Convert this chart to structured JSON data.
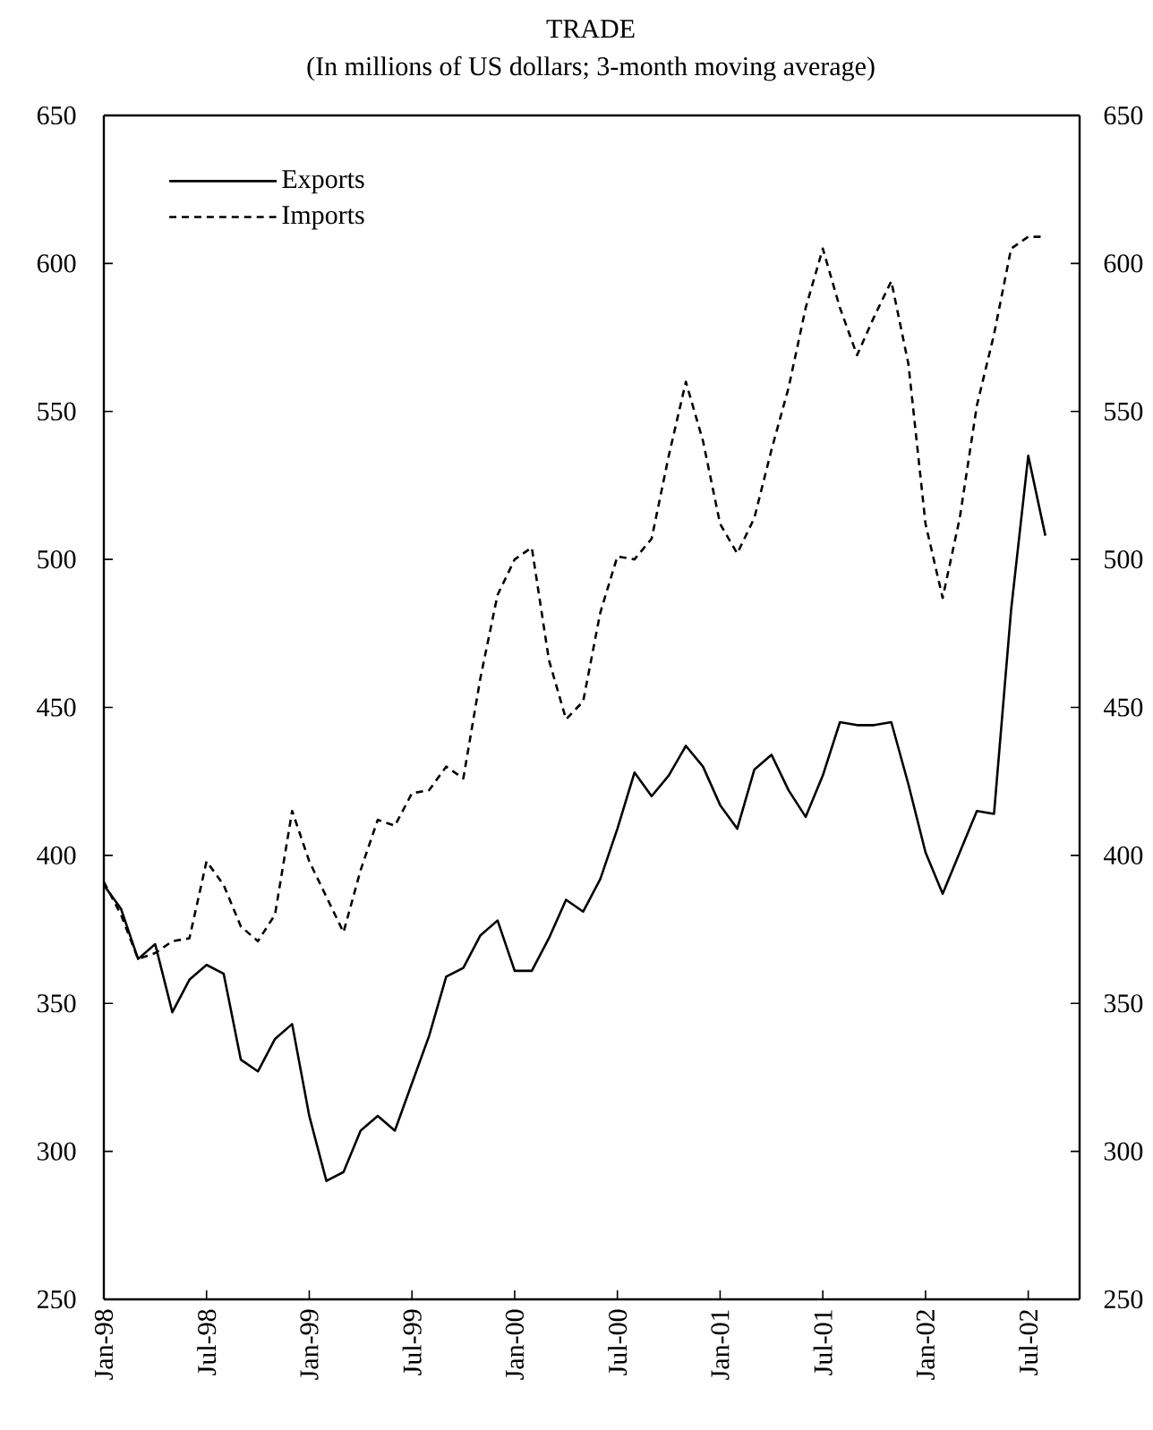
{
  "chart_data": {
    "type": "line",
    "title": "TRADE",
    "subtitle": "(In millions of US dollars; 3-month moving average)",
    "x": [
      "1998-01",
      "1998-02",
      "1998-03",
      "1998-04",
      "1998-05",
      "1998-06",
      "1998-07",
      "1998-08",
      "1998-09",
      "1998-10",
      "1998-11",
      "1998-12",
      "1999-01",
      "1999-02",
      "1999-03",
      "1999-04",
      "1999-05",
      "1999-06",
      "1999-07",
      "1999-08",
      "1999-09",
      "1999-10",
      "1999-11",
      "1999-12",
      "2000-01",
      "2000-02",
      "2000-03",
      "2000-04",
      "2000-05",
      "2000-06",
      "2000-07",
      "2000-08",
      "2000-09",
      "2000-10",
      "2000-11",
      "2000-12",
      "2001-01",
      "2001-02",
      "2001-03",
      "2001-04",
      "2001-05",
      "2001-06",
      "2001-07",
      "2001-08",
      "2001-09",
      "2001-10",
      "2001-11",
      "2001-12",
      "2002-01",
      "2002-02",
      "2002-03",
      "2002-04",
      "2002-05",
      "2002-06",
      "2002-07",
      "2002-08"
    ],
    "series": [
      {
        "name": "Exports",
        "color": "#000000",
        "line_style": "solid",
        "values": [
          390,
          382,
          365,
          370,
          347,
          358,
          363,
          360,
          331,
          327,
          338,
          343,
          312,
          290,
          293,
          307,
          312,
          307,
          323,
          339,
          359,
          362,
          373,
          378,
          361,
          361,
          372,
          385,
          381,
          392,
          409,
          428,
          420,
          427,
          437,
          430,
          417,
          409,
          429,
          434,
          422,
          413,
          427,
          445,
          444,
          444,
          445,
          424,
          401,
          387,
          401,
          415,
          414,
          483,
          535,
          508
        ]
      },
      {
        "name": "Imports",
        "color": "#000000",
        "line_style": "dashed",
        "values": [
          391,
          380,
          365,
          367,
          371,
          372,
          398,
          390,
          376,
          371,
          380,
          415,
          398,
          386,
          374,
          395,
          412,
          410,
          421,
          422,
          430,
          426,
          460,
          488,
          500,
          504,
          466,
          446,
          452,
          482,
          501,
          500,
          507,
          535,
          560,
          540,
          512,
          502,
          514,
          537,
          558,
          585,
          605,
          585,
          569,
          582,
          594,
          566,
          512,
          487,
          514,
          552,
          576,
          605,
          609,
          609
        ]
      }
    ],
    "xlim": [
      "1998-01",
      "2002-10"
    ],
    "xticks": [
      {
        "value": "1998-01",
        "label": "Jan-98"
      },
      {
        "value": "1998-07",
        "label": "Jul-98"
      },
      {
        "value": "1999-01",
        "label": "Jan-99"
      },
      {
        "value": "1999-07",
        "label": "Jul-99"
      },
      {
        "value": "2000-01",
        "label": "Jan-00"
      },
      {
        "value": "2000-07",
        "label": "Jul-00"
      },
      {
        "value": "2001-01",
        "label": "Jan-01"
      },
      {
        "value": "2001-07",
        "label": "Jul-01"
      },
      {
        "value": "2002-01",
        "label": "Jan-02"
      },
      {
        "value": "2002-07",
        "label": "Jul-02"
      }
    ],
    "ylim": [
      250,
      650
    ],
    "yticks": [
      250,
      300,
      350,
      400,
      450,
      500,
      550,
      600,
      650
    ],
    "y2lim": [
      250,
      650
    ],
    "y2ticks": [
      250,
      300,
      350,
      400,
      450,
      500,
      550,
      600,
      650
    ],
    "grid": false,
    "legend": "top left"
  }
}
